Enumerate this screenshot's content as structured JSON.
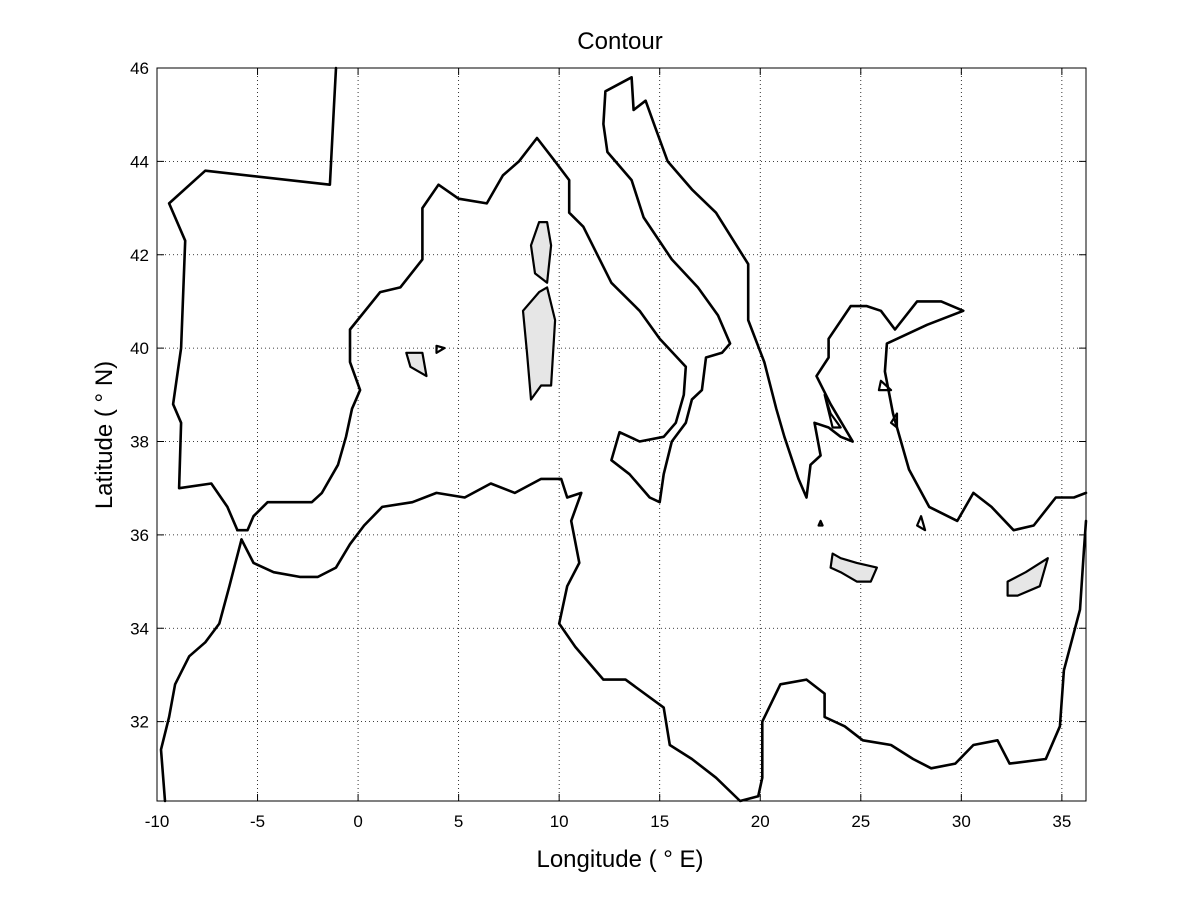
{
  "chart": {
    "title": "Contour",
    "xlabel": "Longitude ( ° E)",
    "ylabel": "Latitude ( ° N)",
    "xlim": [
      -10,
      36.2
    ],
    "ylim": [
      30.3,
      46
    ],
    "xticks": [
      -10,
      -5,
      0,
      5,
      10,
      15,
      20,
      25,
      30,
      35
    ],
    "yticks": [
      32,
      34,
      36,
      38,
      40,
      42,
      44,
      46
    ],
    "grid": true,
    "colors": {
      "line": "#000000",
      "island_fill": "#e6e6e6",
      "background": "#ffffff"
    }
  },
  "chart_data": {
    "type": "contour",
    "title": "Contour",
    "xlabel": "Longitude ( ° E)",
    "ylabel": "Latitude ( ° N)",
    "xlim": [
      -10,
      36.2
    ],
    "ylim": [
      30.3,
      46
    ],
    "grid": true,
    "contours": [
      {
        "id": "iberia-west",
        "closed": false,
        "points": [
          [
            -1.1,
            46
          ],
          [
            -1.2,
            45.2
          ],
          [
            -1.4,
            43.5
          ],
          [
            -7.6,
            43.8
          ],
          [
            -9.4,
            43.1
          ],
          [
            -8.6,
            42.3
          ],
          [
            -8.8,
            40
          ],
          [
            -9.2,
            38.8
          ],
          [
            -8.8,
            38.4
          ],
          [
            -8.9,
            37
          ],
          [
            -7.3,
            37.1
          ],
          [
            -6.5,
            36.6
          ],
          [
            -6,
            36.1
          ]
        ]
      },
      {
        "id": "med-north-west",
        "closed": false,
        "points": [
          [
            -6,
            36.1
          ],
          [
            -5.5,
            36.1
          ],
          [
            -5.2,
            36.4
          ],
          [
            -4.5,
            36.7
          ],
          [
            -2.3,
            36.7
          ],
          [
            -1.8,
            36.9
          ],
          [
            -1,
            37.5
          ],
          [
            -0.6,
            38.1
          ],
          [
            -0.3,
            38.7
          ],
          [
            0.1,
            39.1
          ],
          [
            -0.4,
            39.7
          ],
          [
            -0.4,
            40.4
          ],
          [
            1.1,
            41.2
          ],
          [
            2.1,
            41.3
          ],
          [
            3.2,
            41.9
          ],
          [
            3.2,
            42.4
          ],
          [
            3.2,
            43
          ],
          [
            4,
            43.5
          ],
          [
            5,
            43.2
          ],
          [
            6.4,
            43.1
          ],
          [
            7.2,
            43.7
          ],
          [
            8,
            44
          ],
          [
            8.9,
            44.5
          ],
          [
            9.8,
            44
          ],
          [
            10.5,
            43.6
          ],
          [
            10.5,
            42.9
          ],
          [
            11.2,
            42.6
          ],
          [
            12.6,
            41.4
          ],
          [
            14,
            40.8
          ],
          [
            15,
            40.2
          ],
          [
            16.3,
            39.6
          ],
          [
            16.2,
            39
          ],
          [
            15.8,
            38.4
          ],
          [
            15.2,
            38.1
          ],
          [
            14,
            38
          ],
          [
            13,
            38.2
          ],
          [
            12.6,
            37.6
          ],
          [
            13.5,
            37.3
          ],
          [
            14.5,
            36.8
          ],
          [
            15,
            36.7
          ],
          [
            15.2,
            37.3
          ],
          [
            15.6,
            38
          ],
          [
            16.3,
            38.4
          ],
          [
            16.6,
            38.9
          ],
          [
            17.1,
            39.1
          ],
          [
            17.3,
            39.8
          ],
          [
            18.1,
            39.9
          ],
          [
            18.5,
            40.1
          ],
          [
            17.9,
            40.7
          ],
          [
            16.9,
            41.3
          ],
          [
            15.6,
            41.9
          ],
          [
            14.2,
            42.8
          ],
          [
            13.6,
            43.6
          ],
          [
            12.4,
            44.2
          ],
          [
            12.2,
            44.8
          ],
          [
            12.3,
            45.5
          ],
          [
            13.6,
            45.8
          ],
          [
            13.7,
            45.1
          ],
          [
            14.3,
            45.3
          ],
          [
            14.8,
            44.7
          ],
          [
            15.4,
            44
          ],
          [
            16.6,
            43.4
          ],
          [
            17.8,
            42.9
          ],
          [
            19.4,
            41.8
          ],
          [
            19.4,
            40.6
          ],
          [
            20.2,
            39.7
          ],
          [
            20.8,
            38.7
          ],
          [
            21.2,
            38.1
          ],
          [
            21.9,
            37.2
          ],
          [
            22.3,
            36.8
          ],
          [
            22.5,
            37.5
          ],
          [
            23.0,
            37.7
          ],
          [
            22.7,
            38.4
          ],
          [
            23.4,
            38.3
          ],
          [
            24.0,
            38.1
          ],
          [
            24.6,
            38.0
          ],
          [
            23.5,
            38.8
          ],
          [
            22.8,
            39.4
          ],
          [
            23.4,
            39.8
          ],
          [
            23.4,
            40.2
          ],
          [
            24.5,
            40.9
          ],
          [
            25.3,
            40.9
          ],
          [
            26.0,
            40.8
          ],
          [
            26.7,
            40.4
          ],
          [
            27.8,
            41.0
          ],
          [
            29.0,
            41.0
          ],
          [
            30.1,
            40.8
          ],
          [
            28.3,
            40.5
          ],
          [
            26.3,
            40.1
          ],
          [
            26.2,
            39.5
          ],
          [
            26.6,
            38.6
          ],
          [
            27.4,
            37.4
          ],
          [
            28.4,
            36.6
          ],
          [
            29.8,
            36.3
          ],
          [
            30.6,
            36.9
          ],
          [
            31.5,
            36.6
          ],
          [
            32.6,
            36.1
          ],
          [
            33.6,
            36.2
          ],
          [
            34.7,
            36.8
          ],
          [
            35.6,
            36.8
          ],
          [
            36.2,
            36.9
          ]
        ]
      },
      {
        "id": "med-south",
        "closed": false,
        "points": [
          [
            -5.8,
            35.9
          ],
          [
            -5.2,
            35.4
          ],
          [
            -4.2,
            35.2
          ],
          [
            -2.9,
            35.1
          ],
          [
            -2.0,
            35.1
          ],
          [
            -1.1,
            35.3
          ],
          [
            -0.4,
            35.8
          ],
          [
            0.3,
            36.2
          ],
          [
            1.2,
            36.6
          ],
          [
            2.7,
            36.7
          ],
          [
            3.9,
            36.9
          ],
          [
            5.3,
            36.8
          ],
          [
            6.6,
            37.1
          ],
          [
            7.8,
            36.9
          ],
          [
            9.1,
            37.2
          ],
          [
            10.1,
            37.2
          ],
          [
            10.4,
            36.8
          ],
          [
            11.1,
            36.9
          ],
          [
            10.6,
            36.3
          ],
          [
            11.0,
            35.4
          ],
          [
            10.4,
            34.9
          ],
          [
            10.0,
            34.1
          ],
          [
            10.8,
            33.6
          ],
          [
            12.2,
            32.9
          ],
          [
            13.3,
            32.9
          ],
          [
            15.2,
            32.3
          ],
          [
            15.5,
            31.5
          ],
          [
            16.6,
            31.2
          ],
          [
            17.8,
            30.8
          ],
          [
            19.0,
            30.3
          ],
          [
            19.9,
            30.4
          ],
          [
            20.1,
            30.8
          ],
          [
            20.1,
            32.0
          ],
          [
            21.0,
            32.8
          ],
          [
            22.3,
            32.9
          ],
          [
            23.2,
            32.6
          ],
          [
            23.2,
            32.1
          ],
          [
            24.2,
            31.9
          ],
          [
            25.1,
            31.6
          ],
          [
            26.5,
            31.5
          ],
          [
            27.6,
            31.2
          ],
          [
            28.5,
            31.0
          ],
          [
            29.7,
            31.1
          ],
          [
            30.6,
            31.5
          ],
          [
            31.8,
            31.6
          ],
          [
            32.4,
            31.1
          ],
          [
            34.2,
            31.2
          ],
          [
            34.9,
            31.9
          ],
          [
            35.1,
            33.1
          ],
          [
            35.9,
            34.4
          ],
          [
            36.1,
            35.7
          ],
          [
            36.2,
            36.3
          ]
        ]
      },
      {
        "id": "africa-atlantic",
        "closed": false,
        "points": [
          [
            -5.8,
            35.9
          ],
          [
            -6.1,
            35.4
          ],
          [
            -6.4,
            34.9
          ],
          [
            -6.9,
            34.1
          ],
          [
            -7.6,
            33.7
          ],
          [
            -8.4,
            33.4
          ],
          [
            -9.1,
            32.8
          ],
          [
            -9.4,
            32.1
          ],
          [
            -9.8,
            31.4
          ],
          [
            -9.6,
            30.3
          ]
        ]
      },
      {
        "id": "corsica",
        "closed": true,
        "filled": true,
        "points": [
          [
            9.4,
            42.7
          ],
          [
            9.6,
            42.2
          ],
          [
            9.4,
            41.4
          ],
          [
            8.8,
            41.6
          ],
          [
            8.6,
            42.2
          ],
          [
            9.0,
            42.7
          ]
        ]
      },
      {
        "id": "sardinia",
        "closed": true,
        "filled": true,
        "points": [
          [
            9.4,
            41.3
          ],
          [
            9.8,
            40.6
          ],
          [
            9.6,
            39.2
          ],
          [
            9.1,
            39.2
          ],
          [
            8.6,
            38.9
          ],
          [
            8.4,
            39.9
          ],
          [
            8.2,
            40.8
          ],
          [
            9.0,
            41.2
          ]
        ]
      },
      {
        "id": "mallorca",
        "closed": true,
        "filled": true,
        "points": [
          [
            2.4,
            39.9
          ],
          [
            3.2,
            39.9
          ],
          [
            3.4,
            39.4
          ],
          [
            2.6,
            39.6
          ]
        ]
      },
      {
        "id": "menorca",
        "closed": true,
        "filled": false,
        "points": [
          [
            3.9,
            40.05
          ],
          [
            4.3,
            40.0
          ],
          [
            3.9,
            39.9
          ]
        ]
      },
      {
        "id": "crete",
        "closed": true,
        "filled": true,
        "points": [
          [
            23.6,
            35.6
          ],
          [
            24.0,
            35.5
          ],
          [
            24.8,
            35.4
          ],
          [
            25.8,
            35.3
          ],
          [
            25.5,
            35.0
          ],
          [
            24.8,
            35.0
          ],
          [
            24.0,
            35.2
          ],
          [
            23.5,
            35.3
          ]
        ]
      },
      {
        "id": "cyprus",
        "closed": true,
        "filled": true,
        "points": [
          [
            32.3,
            35.0
          ],
          [
            33.2,
            35.2
          ],
          [
            34.3,
            35.5
          ],
          [
            33.9,
            34.9
          ],
          [
            32.8,
            34.7
          ],
          [
            32.3,
            34.7
          ]
        ]
      },
      {
        "id": "lesbos",
        "closed": true,
        "filled": false,
        "points": [
          [
            26.0,
            39.3
          ],
          [
            26.5,
            39.1
          ],
          [
            25.9,
            39.1
          ]
        ]
      },
      {
        "id": "chios",
        "closed": true,
        "filled": false,
        "points": [
          [
            26.8,
            38.6
          ],
          [
            26.8,
            38.3
          ],
          [
            26.5,
            38.4
          ]
        ]
      },
      {
        "id": "euboea",
        "closed": true,
        "filled": false,
        "points": [
          [
            23.2,
            39.0
          ],
          [
            23.5,
            38.6
          ],
          [
            24.0,
            38.3
          ],
          [
            23.6,
            38.3
          ]
        ]
      },
      {
        "id": "rhodes",
        "closed": true,
        "filled": false,
        "points": [
          [
            28.0,
            36.4
          ],
          [
            28.2,
            36.1
          ],
          [
            27.8,
            36.2
          ]
        ]
      },
      {
        "id": "kythira",
        "closed": true,
        "filled": false,
        "points": [
          [
            23.0,
            36.3
          ],
          [
            23.1,
            36.2
          ],
          [
            22.9,
            36.2
          ]
        ]
      }
    ]
  }
}
